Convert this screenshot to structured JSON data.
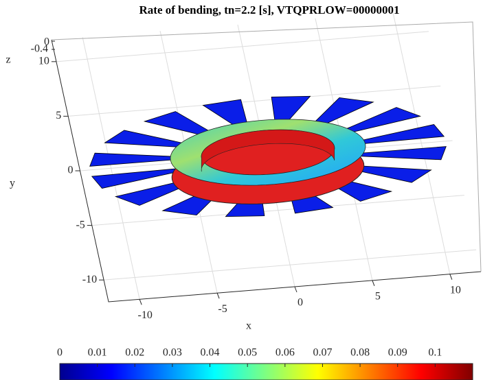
{
  "chart_data": {
    "type": "surface3d",
    "title": "Rate of bending, tn=2.2 [s], VTQPRLOW=00000001",
    "x_label": "x",
    "y_label": "y",
    "z_label": "z",
    "xlim": [
      -12,
      12
    ],
    "ylim": [
      -12,
      12
    ],
    "zlim": [
      -0.4,
      0
    ],
    "xticks": [
      -10,
      -5,
      0,
      5,
      10
    ],
    "yticks": [
      -10,
      -5,
      0,
      5,
      10
    ],
    "zticks": [
      -0.4,
      0
    ],
    "grid": true,
    "colorbar": {
      "lim": [
        0,
        0.11
      ],
      "ticks": [
        0,
        0.01,
        0.02,
        0.03,
        0.04,
        0.05,
        0.06,
        0.07,
        0.08,
        0.09,
        0.1
      ],
      "colormap": "jet"
    }
  }
}
